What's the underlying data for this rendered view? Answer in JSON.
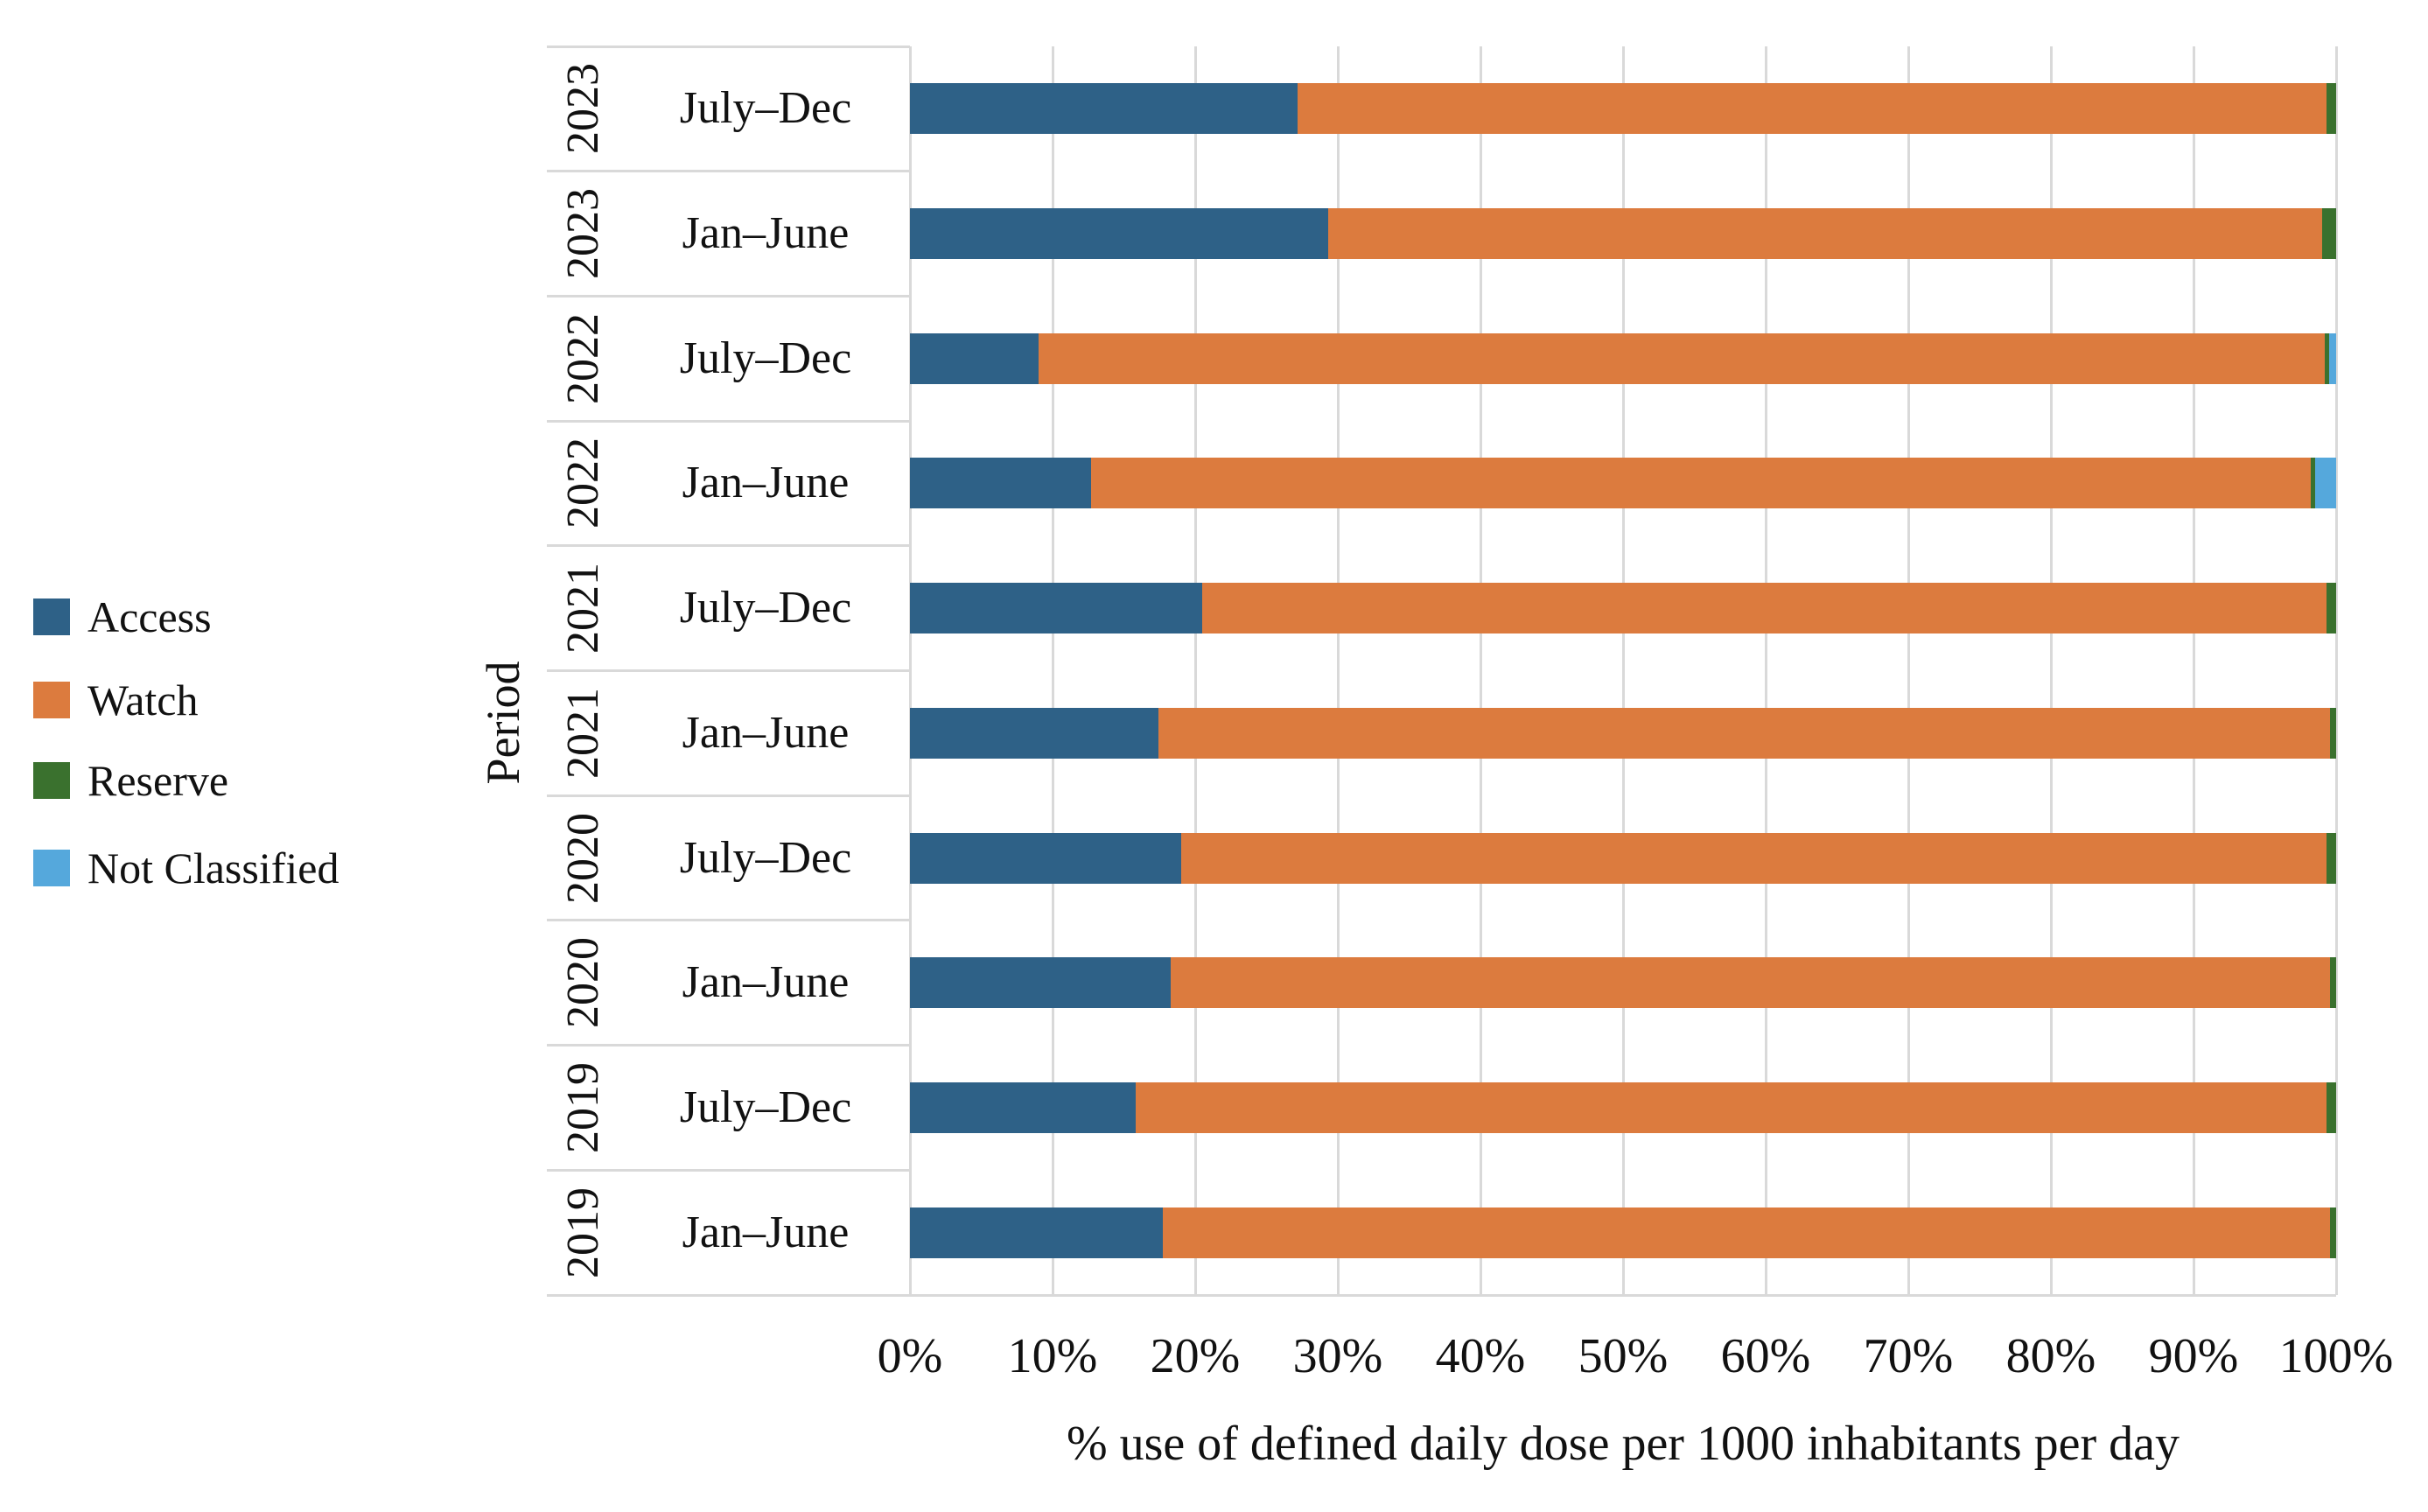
{
  "chart_data": {
    "type": "bar",
    "orientation": "horizontal",
    "stacked": true,
    "xlabel": "% use of defined daily dose per 1000 inhabitants per day",
    "ylabel": "Period",
    "xlim": [
      0,
      100
    ],
    "x_ticks": [
      "0%",
      "10%",
      "20%",
      "30%",
      "40%",
      "50%",
      "60%",
      "70%",
      "80%",
      "90%",
      "100%"
    ],
    "grid": true,
    "grid_color": "#d9d9d9",
    "axis_line_color": "#d9d9d9",
    "legend_position": "left",
    "rows": [
      {
        "year": "2023",
        "period": "July–Dec"
      },
      {
        "year": "2023",
        "period": "Jan–June"
      },
      {
        "year": "2022",
        "period": "July–Dec"
      },
      {
        "year": "2022",
        "period": "Jan–June"
      },
      {
        "year": "2021",
        "period": "July–Dec"
      },
      {
        "year": "2021",
        "period": "Jan–June"
      },
      {
        "year": "2020",
        "period": "July–Dec"
      },
      {
        "year": "2020",
        "period": "Jan–June"
      },
      {
        "year": "2019",
        "period": "July–Dec"
      },
      {
        "year": "2019",
        "period": "Jan–June"
      }
    ],
    "series": [
      {
        "name": "Access",
        "color": "#2e6187",
        "values": [
          27.2,
          29.3,
          9.0,
          12.7,
          20.5,
          17.4,
          19.0,
          18.3,
          15.8,
          17.7
        ]
      },
      {
        "name": "Watch",
        "color": "#dc7b3e",
        "values": [
          72.1,
          69.7,
          90.2,
          85.5,
          78.8,
          82.2,
          80.3,
          81.3,
          83.5,
          81.9
        ]
      },
      {
        "name": "Reserve",
        "color": "#3a712e",
        "values": [
          0.7,
          1.0,
          0.3,
          0.3,
          0.7,
          0.4,
          0.7,
          0.4,
          0.7,
          0.4
        ]
      },
      {
        "name": "Not Classified",
        "color": "#55a8dc",
        "values": [
          0.0,
          0.0,
          0.5,
          1.5,
          0.0,
          0.0,
          0.0,
          0.0,
          0.0,
          0.0
        ]
      }
    ]
  }
}
